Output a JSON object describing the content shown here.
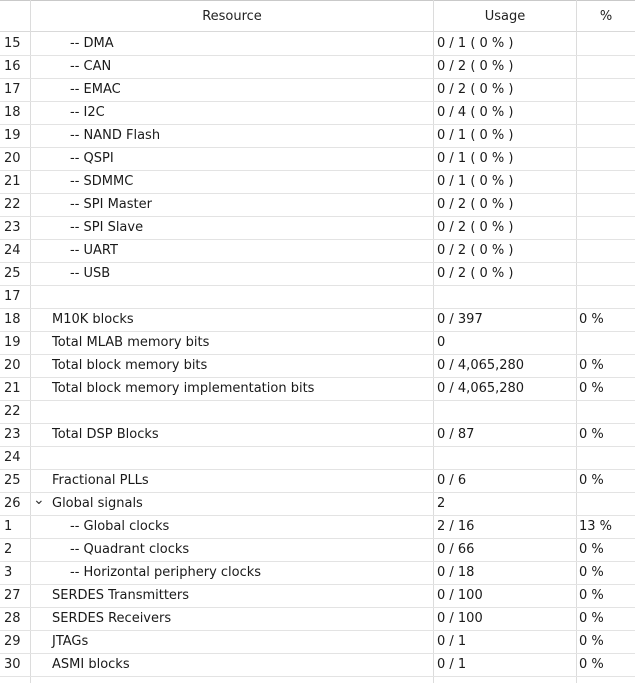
{
  "header": {
    "resource": "Resource",
    "usage": "Usage",
    "percent": "%"
  },
  "rows": [
    {
      "num": "15",
      "resource": "-- DMA",
      "usage": "0 / 1 ( 0 % )",
      "pct": "",
      "indent": 1
    },
    {
      "num": "16",
      "resource": "-- CAN",
      "usage": "0 / 2 ( 0 % )",
      "pct": "",
      "indent": 1
    },
    {
      "num": "17",
      "resource": "-- EMAC",
      "usage": "0 / 2 ( 0 % )",
      "pct": "",
      "indent": 1
    },
    {
      "num": "18",
      "resource": "-- I2C",
      "usage": "0 / 4 ( 0 % )",
      "pct": "",
      "indent": 1
    },
    {
      "num": "19",
      "resource": "-- NAND Flash",
      "usage": "0 / 1 ( 0 % )",
      "pct": "",
      "indent": 1
    },
    {
      "num": "20",
      "resource": "-- QSPI",
      "usage": "0 / 1 ( 0 % )",
      "pct": "",
      "indent": 1
    },
    {
      "num": "21",
      "resource": "-- SDMMC",
      "usage": "0 / 1 ( 0 % )",
      "pct": "",
      "indent": 1
    },
    {
      "num": "22",
      "resource": "-- SPI Master",
      "usage": "0 / 2 ( 0 % )",
      "pct": "",
      "indent": 1
    },
    {
      "num": "23",
      "resource": "-- SPI Slave",
      "usage": "0 / 2 ( 0 % )",
      "pct": "",
      "indent": 1
    },
    {
      "num": "24",
      "resource": "-- UART",
      "usage": "0 / 2 ( 0 % )",
      "pct": "",
      "indent": 1
    },
    {
      "num": "25",
      "resource": "-- USB",
      "usage": "0 / 2 ( 0 % )",
      "pct": "",
      "indent": 1
    },
    {
      "num": "17",
      "resource": "",
      "usage": "",
      "pct": "",
      "indent": 0
    },
    {
      "num": "18",
      "resource": "M10K blocks",
      "usage": "0 / 397",
      "pct": "0 %",
      "indent": 0
    },
    {
      "num": "19",
      "resource": "Total MLAB memory bits",
      "usage": "0",
      "pct": "",
      "indent": 0
    },
    {
      "num": "20",
      "resource": "Total block memory bits",
      "usage": "0 / 4,065,280",
      "pct": "0 %",
      "indent": 0
    },
    {
      "num": "21",
      "resource": "Total block memory implementation bits",
      "usage": "0 / 4,065,280",
      "pct": "0 %",
      "indent": 0
    },
    {
      "num": "22",
      "resource": "",
      "usage": "",
      "pct": "",
      "indent": 0
    },
    {
      "num": "23",
      "resource": "Total DSP Blocks",
      "usage": "0 / 87",
      "pct": "0 %",
      "indent": 0
    },
    {
      "num": "24",
      "resource": "",
      "usage": "",
      "pct": "",
      "indent": 0
    },
    {
      "num": "25",
      "resource": "Fractional PLLs",
      "usage": "0 / 6",
      "pct": "0 %",
      "indent": 0
    },
    {
      "num": "26",
      "resource": "Global signals",
      "usage": "2",
      "pct": "",
      "indent": 0,
      "expanded": true
    },
    {
      "num": "1",
      "resource": "-- Global clocks",
      "usage": "2 / 16",
      "pct": "13 %",
      "indent": 1
    },
    {
      "num": "2",
      "resource": "-- Quadrant clocks",
      "usage": "0 / 66",
      "pct": "0 %",
      "indent": 1
    },
    {
      "num": "3",
      "resource": "-- Horizontal periphery clocks",
      "usage": "0 / 18",
      "pct": "0 %",
      "indent": 1
    },
    {
      "num": "27",
      "resource": "SERDES Transmitters",
      "usage": "0 / 100",
      "pct": "0 %",
      "indent": 0
    },
    {
      "num": "28",
      "resource": "SERDES Receivers",
      "usage": "0 / 100",
      "pct": "0 %",
      "indent": 0
    },
    {
      "num": "29",
      "resource": "JTAGs",
      "usage": "0 / 1",
      "pct": "0 %",
      "indent": 0
    },
    {
      "num": "30",
      "resource": "ASMI blocks",
      "usage": "0 / 1",
      "pct": "0 %",
      "indent": 0
    }
  ],
  "icons": {
    "expand": "chevron-down-icon"
  }
}
